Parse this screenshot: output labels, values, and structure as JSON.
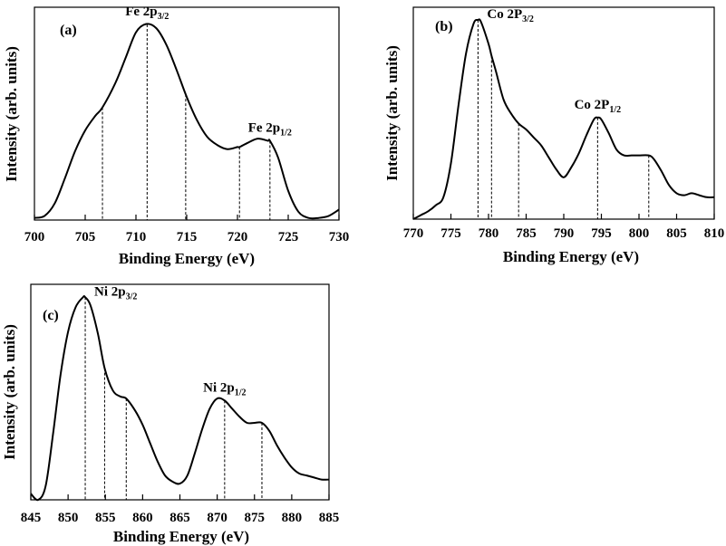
{
  "chart_data": [
    {
      "type": "line",
      "panel_label": "(a)",
      "xlabel": "Binding Energy (eV)",
      "ylabel": "Intensity (arb. units)",
      "xlim": [
        700,
        730
      ],
      "ylim": [
        0,
        1
      ],
      "xticks": [
        "700",
        "705",
        "710",
        "715",
        "720",
        "725",
        "730"
      ],
      "xtick_values": [
        700,
        705,
        710,
        715,
        720,
        725,
        730
      ],
      "y_ticks_labeled": false,
      "grid": false,
      "series": [
        {
          "x": [
            700,
            701,
            702,
            703,
            704,
            705,
            706,
            706.7,
            708,
            709,
            710,
            711,
            712,
            713,
            714,
            715,
            716,
            717,
            718,
            719,
            720,
            720.2,
            721,
            722,
            723,
            723.2,
            724,
            725,
            726,
            727,
            728,
            729,
            730
          ],
          "y": [
            0.01,
            0.02,
            0.08,
            0.2,
            0.33,
            0.43,
            0.5,
            0.54,
            0.66,
            0.78,
            0.9,
            0.94,
            0.92,
            0.84,
            0.72,
            0.59,
            0.48,
            0.4,
            0.36,
            0.34,
            0.35,
            0.35,
            0.37,
            0.39,
            0.38,
            0.38,
            0.3,
            0.14,
            0.04,
            0.01,
            0.01,
            0.02,
            0.05
          ]
        }
      ],
      "peak_markers": [
        706.7,
        711.1,
        714.9,
        720.2,
        723.2
      ],
      "annotations": [
        {
          "base": "Fe 2p",
          "sub": "3/2",
          "x": 711.1
        },
        {
          "base": "Fe 2p",
          "sub": "1/2",
          "x": 723.2
        }
      ]
    },
    {
      "type": "line",
      "panel_label": "(b)",
      "xlabel": "Binding Energy (eV)",
      "ylabel": "Intensity (arb. units)",
      "xlim": [
        770,
        810
      ],
      "ylim": [
        0,
        1
      ],
      "xticks": [
        "770",
        "775",
        "780",
        "785",
        "790",
        "795",
        "800",
        "805",
        "810"
      ],
      "xtick_values": [
        770,
        775,
        780,
        785,
        790,
        795,
        800,
        805,
        810
      ],
      "y_ticks_labeled": false,
      "grid": false,
      "series": [
        {
          "x": [
            770,
            771,
            772,
            773,
            774,
            775,
            776,
            777,
            778,
            778.6,
            779,
            780,
            780.4,
            781,
            782,
            783,
            784,
            785,
            786,
            787,
            788,
            789,
            790,
            791,
            792,
            793,
            794,
            794.5,
            795,
            796,
            797,
            798,
            799,
            800,
            801.3,
            802,
            803,
            804,
            805,
            806,
            807,
            808,
            809,
            810
          ],
          "y": [
            0.0,
            0.02,
            0.04,
            0.07,
            0.11,
            0.28,
            0.57,
            0.83,
            0.98,
            1.0,
            0.99,
            0.88,
            0.82,
            0.74,
            0.6,
            0.53,
            0.48,
            0.45,
            0.41,
            0.37,
            0.31,
            0.25,
            0.21,
            0.26,
            0.33,
            0.42,
            0.5,
            0.51,
            0.5,
            0.43,
            0.35,
            0.32,
            0.32,
            0.32,
            0.32,
            0.3,
            0.24,
            0.17,
            0.13,
            0.12,
            0.13,
            0.12,
            0.11,
            0.11
          ]
        }
      ],
      "peak_markers": [
        778.6,
        780.4,
        784.0,
        794.5,
        801.3
      ],
      "annotations": [
        {
          "base": "Co 2P",
          "sub": "3/2",
          "x": 778.6
        },
        {
          "base": "Co 2P",
          "sub": "1/2",
          "x": 794.5
        }
      ]
    },
    {
      "type": "line",
      "panel_label": "(c)",
      "xlabel": "Binding Energy (eV)",
      "ylabel": "Intensity (arb. units)",
      "xlim": [
        845,
        885
      ],
      "ylim": [
        0,
        1
      ],
      "xticks": [
        "845",
        "850",
        "855",
        "860",
        "865",
        "870",
        "875",
        "880",
        "885"
      ],
      "xtick_values": [
        845,
        850,
        855,
        860,
        865,
        870,
        875,
        880,
        885
      ],
      "y_ticks_labeled": false,
      "grid": false,
      "series": [
        {
          "x": [
            845,
            846,
            847,
            848,
            849,
            850,
            851,
            852,
            852.3,
            853,
            854,
            854.9,
            856,
            857,
            857.8,
            859,
            860,
            861,
            862,
            863,
            864,
            865,
            866,
            867,
            868,
            869,
            870,
            871,
            872,
            873,
            874,
            875,
            876,
            877,
            878,
            879,
            880,
            881,
            882,
            883,
            884,
            885
          ],
          "y": [
            0.03,
            0.0,
            0.07,
            0.33,
            0.62,
            0.83,
            0.95,
            1.0,
            1.0,
            0.96,
            0.82,
            0.65,
            0.54,
            0.51,
            0.5,
            0.44,
            0.37,
            0.28,
            0.19,
            0.12,
            0.09,
            0.08,
            0.12,
            0.23,
            0.35,
            0.45,
            0.5,
            0.49,
            0.45,
            0.41,
            0.38,
            0.38,
            0.38,
            0.34,
            0.27,
            0.21,
            0.16,
            0.13,
            0.12,
            0.11,
            0.1,
            0.1
          ]
        }
      ],
      "peak_markers": [
        852.3,
        854.9,
        857.8,
        871.0,
        876.0
      ],
      "annotations": [
        {
          "base": "Ni 2p",
          "sub": "3/2",
          "x": 852.3
        },
        {
          "base": "Ni 2p",
          "sub": "1/2",
          "x": 871.0
        }
      ]
    }
  ]
}
